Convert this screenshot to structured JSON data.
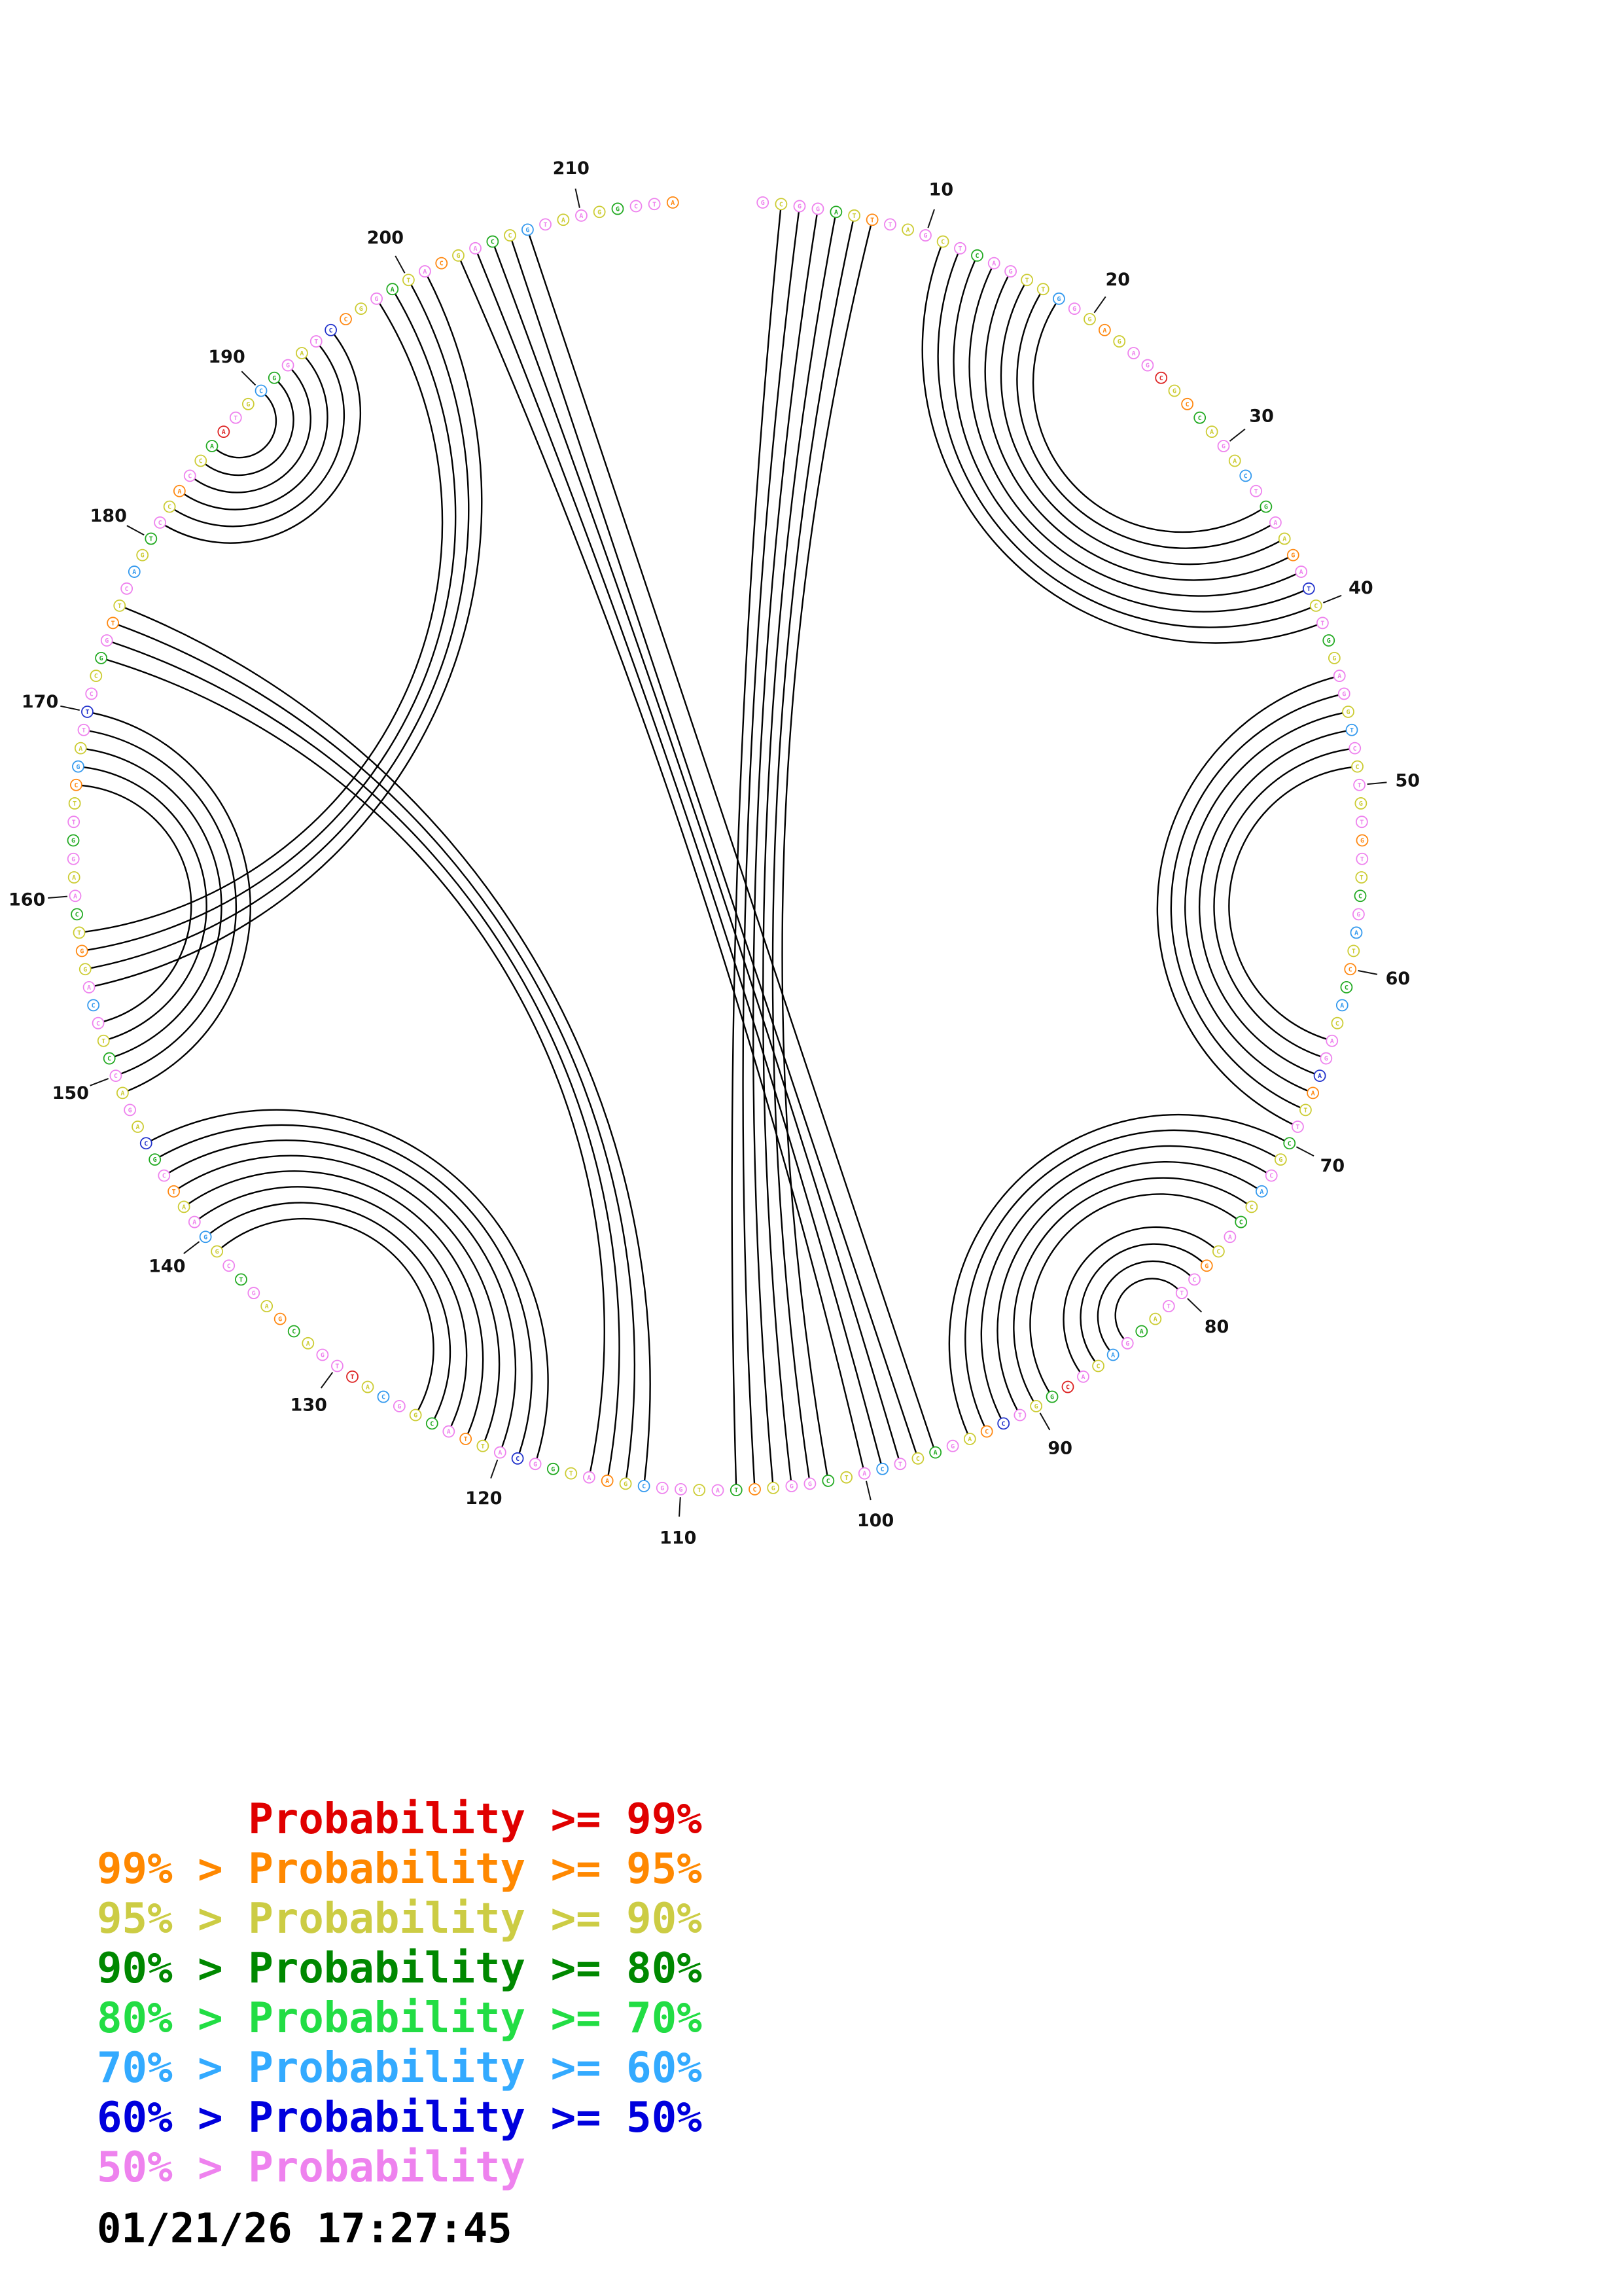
{
  "chart_data": {
    "type": "circular-arc-diagram",
    "description": "Circular base-pair probability plot: nucleotide sequence arranged on a circle with arcs connecting paired bases",
    "sequence": "GCGGATTTAGCTCAGTTGGGAGAGCGCCAGACTGAAGATCTGGAGGTCCTGTGTTCGATCCACAGAATTCGCACCACGCTTAAGACACGGTCCAGACTCATCGGGCTATGGCGAATGGCATTACGGCATTGACGAGTCGGAATCGCAGACCTCCAGGTCAAGGTTCGATTCCGGTTCAGTCCACCAATGCGGATCCGGATACGACCGTAAGGCTA",
    "dot_colors": "pyppgyopypypgppyycpyoyppryogypycpgpyopbypgyppycpypypopygpcyogcyppboypgypcygpyopppygpcyprgypboypgypcpygppyogpyppcyopygpbpyopgypcyrppygoypgpycpyopgbypypgypcpyoygpypgpyocypbpygpoypcygpyopygrpycgpypboypgypoypgycpypygppo",
    "palette": {
      "p": "#ee82ee",
      "y": "#cccc33",
      "g": "#22aa22",
      "o": "#ff8811",
      "r": "#dd2222",
      "c": "#3399ee",
      "b": "#2233cc"
    },
    "tick_interval": 10,
    "tick_labels": [
      10,
      20,
      30,
      40,
      50,
      60,
      70,
      80,
      90,
      100,
      110,
      120,
      130,
      140,
      150,
      160,
      170,
      180,
      190,
      200,
      210
    ],
    "arc_color": "#000000",
    "pairs": [
      [
        2,
        107
      ],
      [
        3,
        106
      ],
      [
        4,
        105
      ],
      [
        5,
        104
      ],
      [
        6,
        103
      ],
      [
        7,
        102
      ],
      [
        96,
        207
      ],
      [
        97,
        206
      ],
      [
        98,
        205
      ],
      [
        99,
        204
      ],
      [
        100,
        203
      ],
      [
        11,
        41
      ],
      [
        12,
        40
      ],
      [
        13,
        39
      ],
      [
        14,
        38
      ],
      [
        15,
        37
      ],
      [
        16,
        36
      ],
      [
        17,
        35
      ],
      [
        18,
        34
      ],
      [
        44,
        69
      ],
      [
        45,
        68
      ],
      [
        46,
        67
      ],
      [
        47,
        66
      ],
      [
        48,
        65
      ],
      [
        49,
        64
      ],
      [
        70,
        94
      ],
      [
        71,
        93
      ],
      [
        72,
        92
      ],
      [
        73,
        91
      ],
      [
        74,
        90
      ],
      [
        75,
        89
      ],
      [
        77,
        87
      ],
      [
        78,
        86
      ],
      [
        79,
        85
      ],
      [
        80,
        84
      ],
      [
        118,
        146
      ],
      [
        119,
        145
      ],
      [
        120,
        144
      ],
      [
        121,
        143
      ],
      [
        122,
        142
      ],
      [
        123,
        141
      ],
      [
        124,
        140
      ],
      [
        125,
        139
      ],
      [
        112,
        176
      ],
      [
        113,
        175
      ],
      [
        114,
        174
      ],
      [
        115,
        173
      ],
      [
        149,
        170
      ],
      [
        150,
        169
      ],
      [
        151,
        168
      ],
      [
        152,
        167
      ],
      [
        153,
        166
      ],
      [
        155,
        201
      ],
      [
        156,
        200
      ],
      [
        157,
        199
      ],
      [
        158,
        198
      ],
      [
        181,
        195
      ],
      [
        182,
        194
      ],
      [
        183,
        193
      ],
      [
        184,
        192
      ],
      [
        185,
        191
      ],
      [
        186,
        190
      ]
    ]
  },
  "legend": {
    "lines": [
      {
        "text": "      Probability >= 99%",
        "color": "#e00000"
      },
      {
        "text": "99% > Probability >= 95%",
        "color": "#ff8800"
      },
      {
        "text": "95% > Probability >= 90%",
        "color": "#cccc44"
      },
      {
        "text": "90% > Probability >= 80%",
        "color": "#008800"
      },
      {
        "text": "80% > Probability >= 70%",
        "color": "#22dd44"
      },
      {
        "text": "70% > Probability >= 60%",
        "color": "#33aaff"
      },
      {
        "text": "60% > Probability >= 50%",
        "color": "#0000dd"
      },
      {
        "text": "50% > Probability",
        "color": "#ee82ee"
      }
    ]
  },
  "timestamp": "01/21/26 17:27:45"
}
